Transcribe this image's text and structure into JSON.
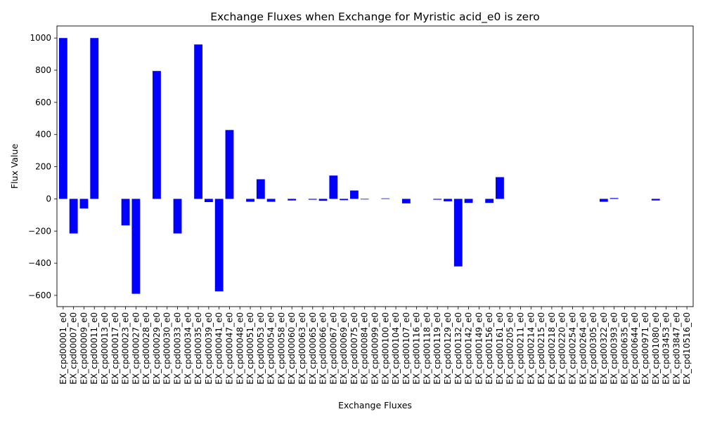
{
  "chart_data": {
    "type": "bar",
    "title": "Exchange Fluxes when Exchange for Myristic acid_e0 is zero",
    "xlabel": "Exchange Fluxes",
    "ylabel": "Flux Value",
    "ylim": [
      -670,
      1075
    ],
    "yticks": [
      -600,
      -400,
      -200,
      0,
      200,
      400,
      600,
      800,
      1000
    ],
    "grid": false,
    "legend": "none",
    "bar_color": "#0000ff",
    "categories": [
      "EX_cpd00001_e0",
      "EX_cpd00007_e0",
      "EX_cpd00009_e0",
      "EX_cpd00011_e0",
      "EX_cpd00013_e0",
      "EX_cpd00017_e0",
      "EX_cpd00023_e0",
      "EX_cpd00027_e0",
      "EX_cpd00028_e0",
      "EX_cpd00029_e0",
      "EX_cpd00030_e0",
      "EX_cpd00033_e0",
      "EX_cpd00034_e0",
      "EX_cpd00035_e0",
      "EX_cpd00039_e0",
      "EX_cpd00041_e0",
      "EX_cpd00047_e0",
      "EX_cpd00048_e0",
      "EX_cpd00051_e0",
      "EX_cpd00053_e0",
      "EX_cpd00054_e0",
      "EX_cpd00058_e0",
      "EX_cpd00060_e0",
      "EX_cpd00063_e0",
      "EX_cpd00065_e0",
      "EX_cpd00066_e0",
      "EX_cpd00067_e0",
      "EX_cpd00069_e0",
      "EX_cpd00075_e0",
      "EX_cpd00084_e0",
      "EX_cpd00099_e0",
      "EX_cpd00100_e0",
      "EX_cpd00104_e0",
      "EX_cpd00107_e0",
      "EX_cpd00116_e0",
      "EX_cpd00118_e0",
      "EX_cpd00119_e0",
      "EX_cpd00129_e0",
      "EX_cpd00132_e0",
      "EX_cpd00142_e0",
      "EX_cpd00149_e0",
      "EX_cpd00156_e0",
      "EX_cpd00161_e0",
      "EX_cpd00205_e0",
      "EX_cpd00211_e0",
      "EX_cpd00214_e0",
      "EX_cpd00215_e0",
      "EX_cpd00218_e0",
      "EX_cpd00220_e0",
      "EX_cpd00254_e0",
      "EX_cpd00264_e0",
      "EX_cpd00305_e0",
      "EX_cpd00322_e0",
      "EX_cpd00393_e0",
      "EX_cpd00635_e0",
      "EX_cpd00644_e0",
      "EX_cpd00971_e0",
      "EX_cpd01080_e0",
      "EX_cpd03453_e0",
      "EX_cpd03847_e0",
      "EX_cpd10516_e0"
    ],
    "values": [
      1000,
      -215,
      -60,
      1000,
      0,
      0,
      -165,
      -590,
      0,
      795,
      0,
      -215,
      0,
      960,
      -20,
      -575,
      428,
      0,
      -18,
      122,
      -18,
      0,
      -10,
      0,
      -5,
      -12,
      145,
      -8,
      52,
      -3,
      0,
      3,
      0,
      -28,
      0,
      0,
      -5,
      -15,
      -420,
      -25,
      0,
      -25,
      135,
      0,
      0,
      0,
      0,
      0,
      0,
      0,
      0,
      0,
      -18,
      5,
      0,
      0,
      0,
      -10,
      0,
      0,
      0
    ]
  }
}
